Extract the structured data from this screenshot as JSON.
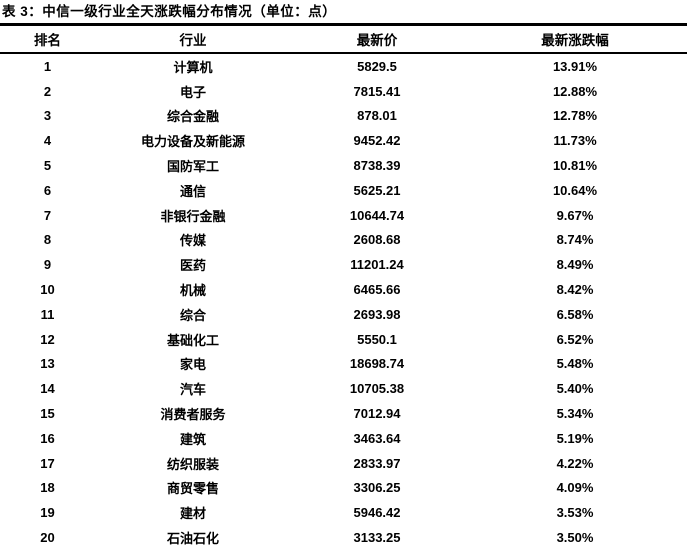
{
  "table": {
    "title": "表 3：中信一级行业全天涨跌幅分布情况（单位：点）",
    "columns": [
      "排名",
      "行业",
      "最新价",
      "最新涨跌幅"
    ],
    "rows": [
      {
        "rank": "1",
        "industry": "计算机",
        "price": "5829.5",
        "change": "13.91%"
      },
      {
        "rank": "2",
        "industry": "电子",
        "price": "7815.41",
        "change": "12.88%"
      },
      {
        "rank": "3",
        "industry": "综合金融",
        "price": "878.01",
        "change": "12.78%"
      },
      {
        "rank": "4",
        "industry": "电力设备及新能源",
        "price": "9452.42",
        "change": "11.73%"
      },
      {
        "rank": "5",
        "industry": "国防军工",
        "price": "8738.39",
        "change": "10.81%"
      },
      {
        "rank": "6",
        "industry": "通信",
        "price": "5625.21",
        "change": "10.64%"
      },
      {
        "rank": "7",
        "industry": "非银行金融",
        "price": "10644.74",
        "change": "9.67%"
      },
      {
        "rank": "8",
        "industry": "传媒",
        "price": "2608.68",
        "change": "8.74%"
      },
      {
        "rank": "9",
        "industry": "医药",
        "price": "11201.24",
        "change": "8.49%"
      },
      {
        "rank": "10",
        "industry": "机械",
        "price": "6465.66",
        "change": "8.42%"
      },
      {
        "rank": "11",
        "industry": "综合",
        "price": "2693.98",
        "change": "6.58%"
      },
      {
        "rank": "12",
        "industry": "基础化工",
        "price": "5550.1",
        "change": "6.52%"
      },
      {
        "rank": "13",
        "industry": "家电",
        "price": "18698.74",
        "change": "5.48%"
      },
      {
        "rank": "14",
        "industry": "汽车",
        "price": "10705.38",
        "change": "5.40%"
      },
      {
        "rank": "15",
        "industry": "消费者服务",
        "price": "7012.94",
        "change": "5.34%"
      },
      {
        "rank": "16",
        "industry": "建筑",
        "price": "3463.64",
        "change": "5.19%"
      },
      {
        "rank": "17",
        "industry": "纺织服装",
        "price": "2833.97",
        "change": "4.22%"
      },
      {
        "rank": "18",
        "industry": "商贸零售",
        "price": "3306.25",
        "change": "4.09%"
      },
      {
        "rank": "19",
        "industry": "建材",
        "price": "5946.42",
        "change": "3.53%"
      },
      {
        "rank": "20",
        "industry": "石油石化",
        "price": "3133.25",
        "change": "3.50%"
      }
    ]
  },
  "colors": {
    "background": "#ffffff",
    "text": "#000000",
    "rule": "#000000"
  }
}
